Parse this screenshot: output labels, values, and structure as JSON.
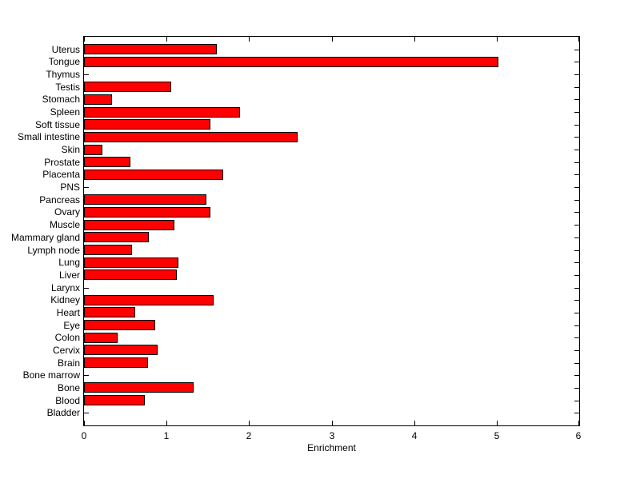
{
  "figure": {
    "background_color": "#ffffff",
    "axis_color": "#000000",
    "text_color": "#000000"
  },
  "chart_data": {
    "type": "bar",
    "orientation": "horizontal",
    "title": "",
    "xlabel": "Enrichment",
    "ylabel": "",
    "xlim": [
      0,
      6
    ],
    "xticks": [
      0,
      1,
      2,
      3,
      4,
      5,
      6
    ],
    "grid": false,
    "bar_color": "#ff0000",
    "bar_edge_color": "#000000",
    "categories": [
      "Uterus",
      "Tongue",
      "Thymus",
      "Testis",
      "Stomach",
      "Spleen",
      "Soft tissue",
      "Small intestine",
      "Skin",
      "Prostate",
      "Placenta",
      "PNS",
      "Pancreas",
      "Ovary",
      "Muscle",
      "Mammary gland",
      "Lymph node",
      "Lung",
      "Liver",
      "Larynx",
      "Kidney",
      "Heart",
      "Eye",
      "Colon",
      "Cervix",
      "Brain",
      "Bone marrow",
      "Bone",
      "Blood",
      "Bladder"
    ],
    "values": [
      1.6,
      5.01,
      0,
      1.05,
      0.33,
      1.88,
      1.52,
      2.58,
      0.21,
      0.55,
      1.68,
      0,
      1.47,
      1.52,
      1.09,
      0.78,
      0.57,
      1.13,
      1.11,
      0,
      1.56,
      0.61,
      0.85,
      0.4,
      0.88,
      0.77,
      0,
      1.32,
      0.73,
      0
    ]
  }
}
